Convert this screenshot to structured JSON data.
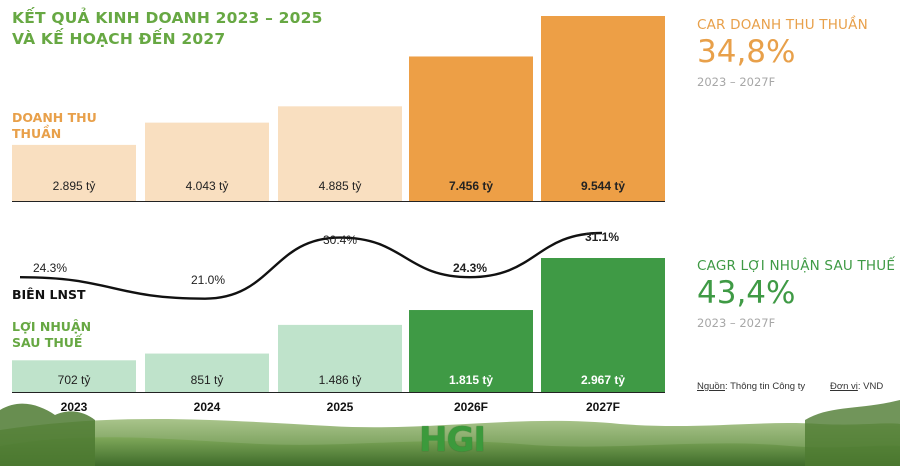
{
  "title": [
    "KẾT QUẢ KINH DOANH 2023 – 2025",
    "VÀ KẾ HOẠCH ĐẾN 2027"
  ],
  "labels": {
    "revenue": [
      "DOANH THU",
      "THUẦN"
    ],
    "margin": "BIÊN LNST",
    "profit": [
      "LỢI NHUẬN",
      "SAU THUẾ"
    ]
  },
  "kpis": [
    {
      "label": "CAR DOANH THU THUẦN",
      "value": "34,8%",
      "period": "2023 – 2027F",
      "color": "#e8a04a"
    },
    {
      "label": "CAGR LỢI NHUẬN SAU THUẾ",
      "value": "43,4%",
      "period": "2023 – 2027F",
      "color": "#3f9a45"
    }
  ],
  "source": {
    "label": "Nguồn",
    "text": ": Thông tin Công ty"
  },
  "unit": {
    "label": "Đơn vị",
    "text": ": VND"
  },
  "logo_text": "HGI",
  "colors": {
    "title": "#67a843",
    "revenue_label": "#e8a04a",
    "margin_label": "#111111",
    "profit_label": "#67a843",
    "revenue_actual": "#f9dfc0",
    "revenue_forecast": "#ed9f46",
    "profit_actual": "#bfe3cb",
    "profit_forecast": "#3f9a45"
  },
  "chart_data": {
    "type": "bar",
    "categories": [
      "2023",
      "2024",
      "2025",
      "2026F",
      "2027F"
    ],
    "forecast": [
      false,
      false,
      false,
      true,
      true
    ],
    "series": [
      {
        "values": [
          2895,
          4043,
          4885,
          7456,
          9544
        ],
        "labels": [
          "2.895 tỷ",
          "4.043 tỷ",
          "4.885 tỷ",
          "7.456 tỷ",
          "9.544 tỷ"
        ]
      },
      {
        "values": [
          702,
          851,
          1486,
          1815,
          2967
        ],
        "labels": [
          "702 tỷ",
          "851 tỷ",
          "1.486 tỷ",
          "1.815 tỷ",
          "2.967 tỷ"
        ]
      }
    ],
    "margin_line": {
      "type": "line",
      "values": [
        24.3,
        21.0,
        30.4,
        24.3,
        31.1
      ],
      "labels": [
        "24.3%",
        "21.0%",
        "30.4%",
        "24.3%",
        "31.1%"
      ]
    }
  }
}
